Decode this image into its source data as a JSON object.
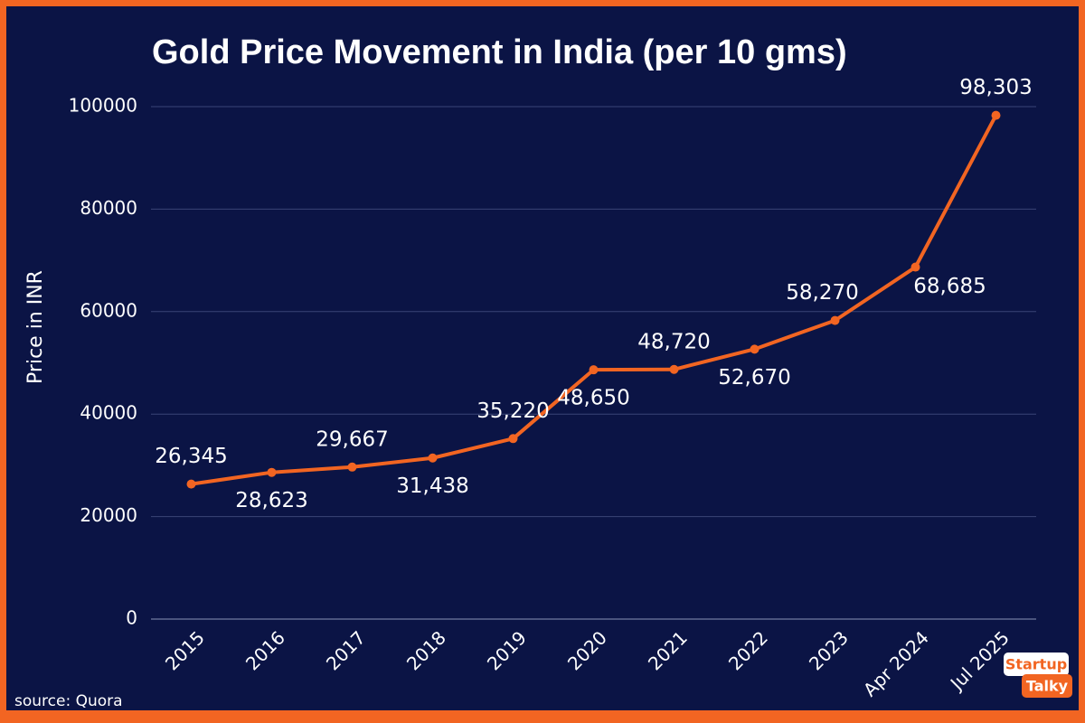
{
  "chart_data": {
    "type": "line",
    "title": "Gold Price Movement in India (per 10 gms)",
    "y_label": "Price in INR",
    "source": "source: Quora",
    "categories": [
      "2015",
      "2016",
      "2017",
      "2018",
      "2019",
      "2020",
      "2021",
      "2022",
      "2023",
      "Apr 2024",
      "Jul 2025"
    ],
    "series": [
      {
        "name": "Price",
        "color": "#f26522",
        "values": [
          26345,
          28623,
          29667,
          31438,
          35220,
          48650,
          48720,
          52670,
          58270,
          68685,
          98303
        ],
        "value_labels": [
          "26,345",
          "28,623",
          "29,667",
          "31,438",
          "35,220",
          "48,650",
          "48,720",
          "52,670",
          "58,270",
          "68,685",
          "98,303"
        ]
      }
    ],
    "ylim": [
      0,
      100000
    ],
    "yticks": [
      0,
      20000,
      40000,
      60000,
      80000,
      100000
    ],
    "grid": true
  },
  "logo": {
    "line1": "Startup",
    "line2": "Talky"
  }
}
